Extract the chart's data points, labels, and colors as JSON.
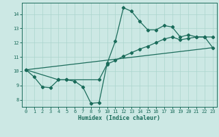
{
  "xlabel": "Humidex (Indice chaleur)",
  "bg_color": "#cce8e4",
  "line_color": "#1a6b5a",
  "grid_color": "#aad4cc",
  "xlim": [
    -0.5,
    23.5
  ],
  "ylim": [
    7.5,
    14.8
  ],
  "xticks": [
    0,
    1,
    2,
    3,
    4,
    5,
    6,
    7,
    8,
    9,
    10,
    11,
    12,
    13,
    14,
    15,
    16,
    17,
    18,
    19,
    20,
    21,
    22,
    23
  ],
  "yticks": [
    8,
    9,
    10,
    11,
    12,
    13,
    14
  ],
  "line1_x": [
    0,
    1,
    2,
    3,
    4,
    5,
    6,
    7,
    8,
    9,
    10,
    11,
    12,
    13,
    14,
    15,
    16,
    17,
    18,
    19,
    20,
    21,
    22,
    23
  ],
  "line1_y": [
    10.1,
    9.6,
    8.9,
    8.85,
    9.4,
    9.4,
    9.3,
    8.9,
    7.75,
    7.8,
    10.55,
    12.1,
    14.45,
    14.2,
    13.5,
    12.9,
    12.9,
    13.2,
    13.1,
    12.4,
    12.55,
    12.4,
    12.4,
    12.4
  ],
  "line2_x": [
    0,
    4,
    5,
    9,
    10,
    11,
    12,
    13,
    14,
    15,
    16,
    17,
    18,
    19,
    20,
    21,
    22,
    23
  ],
  "line2_y": [
    10.1,
    9.4,
    9.4,
    9.4,
    10.5,
    10.75,
    11.05,
    11.3,
    11.55,
    11.75,
    12.0,
    12.25,
    12.4,
    12.2,
    12.3,
    12.4,
    12.4,
    11.65
  ],
  "line3_x": [
    0,
    23
  ],
  "line3_y": [
    10.1,
    11.65
  ]
}
